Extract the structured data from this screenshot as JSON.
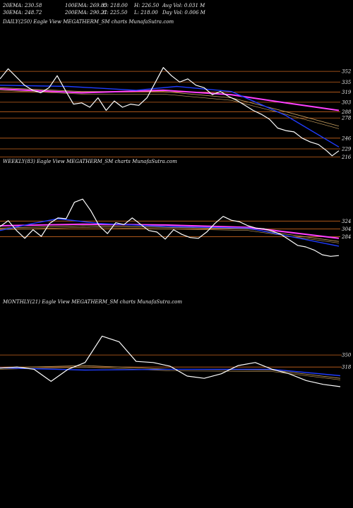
{
  "header": {
    "row1": [
      "20EMA: 230.58",
      "100EMA: 269.85",
      "O: 218.00",
      "H: 226.50",
      "Avg Vol: 0.031 M"
    ],
    "row2": [
      "30EMA: 248.72",
      "200EMA: 290.21",
      "C: 225.50",
      "L: 218.00",
      "Day Vol: 0.006  M"
    ]
  },
  "colors": {
    "background": "#000000",
    "price": "#ffffff",
    "level": "#c8641e",
    "ema_fast": "#1f3cff",
    "ema_slow": "#ff40ff",
    "ema_mid": "#c8a060"
  },
  "chart_data": [
    {
      "type": "line",
      "label": "DAILY(250) Eagle   View  MEGATHERM_SM charts MunafaSutra.com",
      "yticks": [
        352,
        335,
        319,
        303,
        288,
        278,
        246,
        229,
        216
      ],
      "yrange": [
        210,
        370
      ],
      "n": 250,
      "price": [
        [
          0,
          340
        ],
        [
          6,
          356
        ],
        [
          12,
          343
        ],
        [
          18,
          330
        ],
        [
          24,
          322
        ],
        [
          30,
          318
        ],
        [
          36,
          326
        ],
        [
          42,
          345
        ],
        [
          48,
          322
        ],
        [
          54,
          300
        ],
        [
          60,
          302
        ],
        [
          66,
          295
        ],
        [
          72,
          310
        ],
        [
          78,
          290
        ],
        [
          84,
          305
        ],
        [
          90,
          295
        ],
        [
          96,
          300
        ],
        [
          102,
          298
        ],
        [
          108,
          310
        ],
        [
          114,
          334
        ],
        [
          120,
          358
        ],
        [
          126,
          345
        ],
        [
          132,
          335
        ],
        [
          138,
          340
        ],
        [
          144,
          330
        ],
        [
          150,
          326
        ],
        [
          156,
          315
        ],
        [
          162,
          320
        ],
        [
          168,
          312
        ],
        [
          174,
          306
        ],
        [
          180,
          298
        ],
        [
          186,
          290
        ],
        [
          192,
          284
        ],
        [
          198,
          276
        ],
        [
          204,
          262
        ],
        [
          210,
          258
        ],
        [
          216,
          256
        ],
        [
          222,
          246
        ],
        [
          228,
          240
        ],
        [
          234,
          236
        ],
        [
          240,
          226
        ],
        [
          244,
          218
        ],
        [
          249,
          226
        ]
      ],
      "ema_blue": [
        [
          0,
          330
        ],
        [
          50,
          328
        ],
        [
          100,
          322
        ],
        [
          130,
          328
        ],
        [
          170,
          320
        ],
        [
          210,
          282
        ],
        [
          249,
          232
        ]
      ],
      "ema_magenta": [
        [
          0,
          324
        ],
        [
          60,
          318
        ],
        [
          120,
          322
        ],
        [
          170,
          315
        ],
        [
          210,
          302
        ],
        [
          249,
          290
        ]
      ],
      "ema_tan": [
        [
          0,
          326
        ],
        [
          60,
          320
        ],
        [
          120,
          320
        ],
        [
          170,
          310
        ],
        [
          210,
          288
        ],
        [
          249,
          265
        ]
      ]
    },
    {
      "type": "line",
      "label": "WEEKLY(83) Eagle   View  MEGATHERM_SM charts MunafaSutra.com",
      "yticks": [
        324,
        304,
        284
      ],
      "yrange": [
        150,
        420
      ],
      "n": 83,
      "price": [
        [
          0,
          310
        ],
        [
          2,
          325
        ],
        [
          4,
          300
        ],
        [
          6,
          280
        ],
        [
          8,
          302
        ],
        [
          10,
          285
        ],
        [
          12,
          318
        ],
        [
          14,
          332
        ],
        [
          16,
          330
        ],
        [
          18,
          372
        ],
        [
          20,
          380
        ],
        [
          22,
          350
        ],
        [
          24,
          312
        ],
        [
          26,
          292
        ],
        [
          28,
          320
        ],
        [
          30,
          315
        ],
        [
          32,
          332
        ],
        [
          34,
          316
        ],
        [
          36,
          300
        ],
        [
          38,
          296
        ],
        [
          40,
          278
        ],
        [
          42,
          302
        ],
        [
          44,
          290
        ],
        [
          46,
          282
        ],
        [
          48,
          280
        ],
        [
          50,
          296
        ],
        [
          52,
          318
        ],
        [
          54,
          336
        ],
        [
          56,
          326
        ],
        [
          58,
          322
        ],
        [
          60,
          312
        ],
        [
          62,
          306
        ],
        [
          64,
          304
        ],
        [
          66,
          298
        ],
        [
          68,
          290
        ],
        [
          70,
          276
        ],
        [
          72,
          262
        ],
        [
          74,
          258
        ],
        [
          76,
          250
        ],
        [
          78,
          238
        ],
        [
          80,
          234
        ],
        [
          82,
          236
        ]
      ],
      "ema_blue": [
        [
          0,
          300
        ],
        [
          8,
          318
        ],
        [
          14,
          330
        ],
        [
          24,
          318
        ],
        [
          40,
          310
        ],
        [
          60,
          306
        ],
        [
          82,
          260
        ]
      ],
      "ema_magenta": [
        [
          0,
          312
        ],
        [
          20,
          316
        ],
        [
          40,
          314
        ],
        [
          60,
          308
        ],
        [
          82,
          280
        ]
      ],
      "ema_tan": [
        [
          0,
          306
        ],
        [
          20,
          312
        ],
        [
          40,
          308
        ],
        [
          60,
          304
        ],
        [
          82,
          272
        ]
      ]
    },
    {
      "type": "line",
      "label": "MONTHLY(21) Eagle   View  MEGATHERM_SM charts MunafaSutra.com",
      "yticks": [
        350,
        318
      ],
      "yrange": [
        150,
        440
      ],
      "n": 21,
      "price": [
        [
          0,
          315
        ],
        [
          1,
          318
        ],
        [
          2,
          312
        ],
        [
          3,
          280
        ],
        [
          4,
          312
        ],
        [
          5,
          330
        ],
        [
          6,
          400
        ],
        [
          7,
          385
        ],
        [
          8,
          333
        ],
        [
          9,
          330
        ],
        [
          10,
          320
        ],
        [
          11,
          294
        ],
        [
          12,
          288
        ],
        [
          13,
          300
        ],
        [
          14,
          322
        ],
        [
          15,
          330
        ],
        [
          16,
          312
        ],
        [
          17,
          300
        ],
        [
          18,
          282
        ],
        [
          19,
          272
        ],
        [
          20,
          266
        ]
      ],
      "ema_blue": [
        [
          0,
          316
        ],
        [
          5,
          310
        ],
        [
          10,
          312
        ],
        [
          16,
          312
        ],
        [
          20,
          295
        ]
      ],
      "ema_tan": [
        [
          0,
          316
        ],
        [
          5,
          322
        ],
        [
          10,
          312
        ],
        [
          16,
          310
        ],
        [
          20,
          288
        ]
      ]
    }
  ]
}
